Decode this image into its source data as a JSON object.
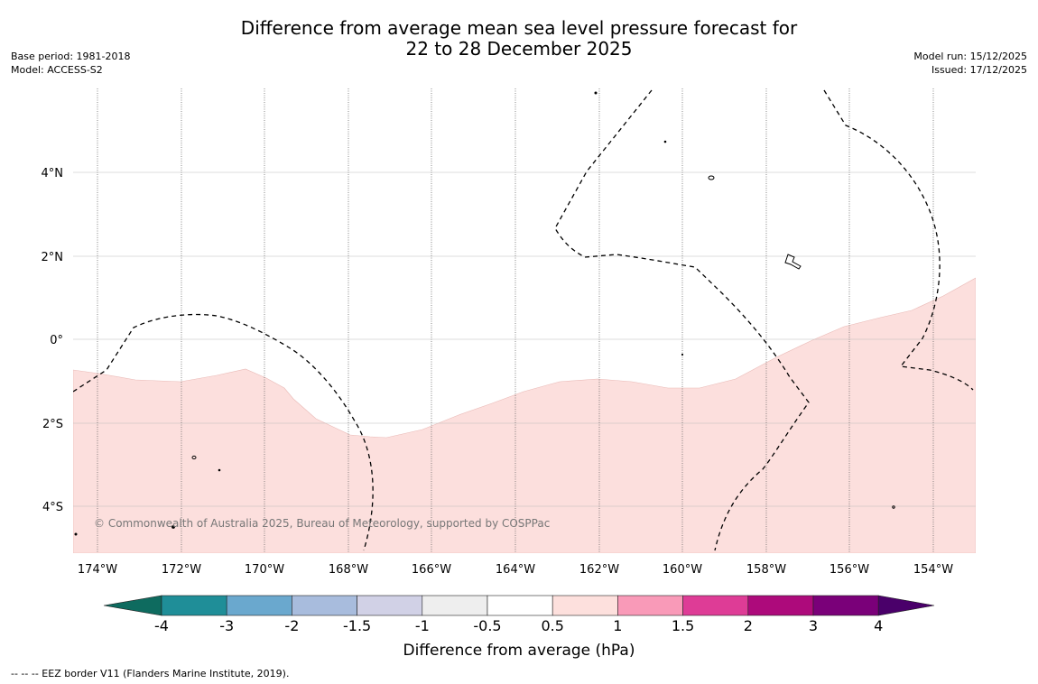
{
  "title": {
    "line1": "Difference from average mean sea level pressure forecast for",
    "line2": "22 to 28 December 2025"
  },
  "meta": {
    "base_period": "Base period: 1981-2018",
    "model": "Model: ACCESS-S2",
    "model_run": "Model run: 15/12/2025",
    "issued": "Issued: 17/12/2025"
  },
  "map": {
    "copyright": "© Commonwealth of Australia 2025, Bureau of Meteorology, supported by COSPPac",
    "lat_labels": [
      "4°N",
      "2°N",
      "0°",
      "2°S",
      "4°S"
    ],
    "lon_labels": [
      "174°W",
      "172°W",
      "170°W",
      "168°W",
      "166°W",
      "164°W",
      "162°W",
      "160°W",
      "158°W",
      "156°W",
      "154°W"
    ],
    "shaded_category": "0.5 to 1",
    "colors": {
      "background": "#ffffff",
      "anomaly_fill": "#fcdfdd",
      "grid": "#bbbbbb",
      "eez_line": "#000000"
    }
  },
  "colorbar": {
    "tick_labels": [
      "-4",
      "-3",
      "-2",
      "-1.5",
      "-1",
      "-0.5",
      "0.5",
      "1",
      "1.5",
      "2",
      "3",
      "4"
    ],
    "label": "Difference from average (hPa)",
    "colors": [
      "#0e6b5f",
      "#1f8e98",
      "#6aa8ce",
      "#a8bcdd",
      "#d1d1e6",
      "#eeeeee",
      "#ffffff",
      "#fde0dd",
      "#f99ab8",
      "#de3c96",
      "#ad0a7b",
      "#7a0079",
      "#4a006a"
    ]
  },
  "footnote": "-- -- -- EEZ border V11 (Flanders Marine Institute, 2019)."
}
